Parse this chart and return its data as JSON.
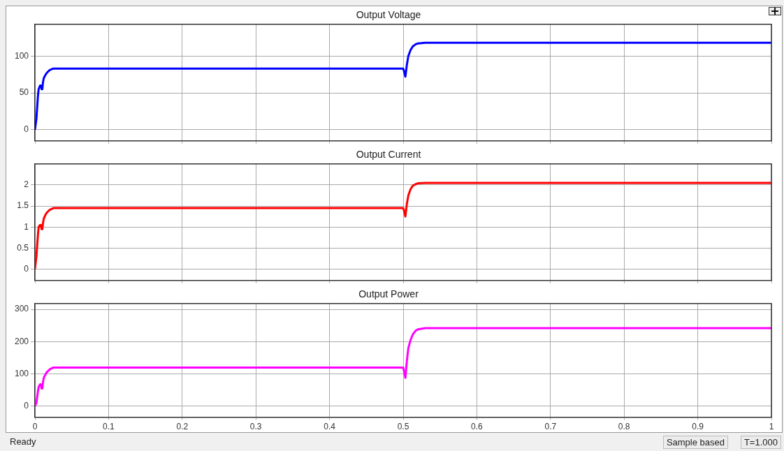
{
  "chart_data": [
    {
      "type": "line",
      "title": "Output Voltage",
      "xlim": [
        0,
        1
      ],
      "xticks": [
        0,
        0.1,
        0.2,
        0.3,
        0.4,
        0.5,
        0.6,
        0.7,
        0.8,
        0.9,
        1
      ],
      "ylim": [
        -15,
        143
      ],
      "yticks": [
        0,
        50,
        100
      ],
      "grid": true,
      "tick_labels": "y",
      "legend": false,
      "x": [
        0,
        0.002,
        0.004,
        0.005,
        0.007,
        0.008,
        0.009,
        0.01,
        0.011,
        0.012,
        0.014,
        0.016,
        0.02,
        0.025,
        0.03,
        0.1,
        0.2,
        0.3,
        0.4,
        0.5,
        0.501,
        0.503,
        0.505,
        0.507,
        0.51,
        0.513,
        0.517,
        0.52,
        0.53,
        0.6,
        0.7,
        0.8,
        0.9,
        1
      ],
      "series": [
        {
          "color": "#0000ff",
          "values": [
            0,
            15,
            45,
            55,
            60,
            60,
            55,
            55,
            65,
            70,
            74,
            77,
            81,
            83,
            83,
            83,
            83,
            83,
            83,
            83,
            80,
            72,
            88,
            100,
            108,
            113,
            116,
            117,
            118,
            118,
            118,
            118,
            118,
            118
          ]
        }
      ]
    },
    {
      "type": "line",
      "title": "Output Current",
      "xlim": [
        0,
        1
      ],
      "xticks": [
        0,
        0.1,
        0.2,
        0.3,
        0.4,
        0.5,
        0.6,
        0.7,
        0.8,
        0.9,
        1
      ],
      "ylim": [
        -0.27,
        2.5
      ],
      "yticks": [
        0,
        0.5,
        1,
        1.5,
        2
      ],
      "grid": true,
      "tick_labels": "y",
      "legend": false,
      "x": [
        0,
        0.002,
        0.004,
        0.005,
        0.007,
        0.008,
        0.009,
        0.01,
        0.011,
        0.012,
        0.014,
        0.016,
        0.02,
        0.025,
        0.03,
        0.1,
        0.2,
        0.3,
        0.4,
        0.5,
        0.501,
        0.503,
        0.505,
        0.507,
        0.51,
        0.513,
        0.517,
        0.52,
        0.53,
        0.6,
        0.7,
        0.8,
        0.9,
        1
      ],
      "series": [
        {
          "color": "#ff0000",
          "values": [
            0,
            0.3,
            0.8,
            1.0,
            1.05,
            1.05,
            0.95,
            0.95,
            1.1,
            1.2,
            1.28,
            1.34,
            1.41,
            1.45,
            1.45,
            1.45,
            1.45,
            1.45,
            1.45,
            1.45,
            1.4,
            1.25,
            1.55,
            1.75,
            1.9,
            1.98,
            2.02,
            2.04,
            2.05,
            2.05,
            2.05,
            2.05,
            2.05,
            2.05
          ]
        }
      ]
    },
    {
      "type": "line",
      "title": "Output Power",
      "xlim": [
        0,
        1
      ],
      "xticks": [
        0,
        0.1,
        0.2,
        0.3,
        0.4,
        0.5,
        0.6,
        0.7,
        0.8,
        0.9,
        1
      ],
      "ylim": [
        -34,
        318
      ],
      "yticks": [
        0,
        100,
        200,
        300
      ],
      "grid": true,
      "legend": false,
      "annotations": [
        "Ready",
        "Sample based",
        "T=1.000"
      ],
      "x": [
        0,
        0.002,
        0.004,
        0.005,
        0.007,
        0.008,
        0.009,
        0.01,
        0.011,
        0.012,
        0.014,
        0.016,
        0.02,
        0.025,
        0.03,
        0.1,
        0.2,
        0.3,
        0.4,
        0.5,
        0.501,
        0.503,
        0.505,
        0.507,
        0.51,
        0.513,
        0.517,
        0.52,
        0.53,
        0.6,
        0.7,
        0.8,
        0.9,
        1
      ],
      "series": [
        {
          "color": "#ff00ff",
          "values": [
            0,
            10,
            45,
            60,
            68,
            68,
            55,
            55,
            75,
            88,
            97,
            105,
            114,
            120,
            120,
            120,
            120,
            120,
            120,
            120,
            110,
            88,
            140,
            180,
            205,
            222,
            234,
            238,
            242,
            242,
            242,
            242,
            242,
            242
          ]
        }
      ]
    }
  ]
}
